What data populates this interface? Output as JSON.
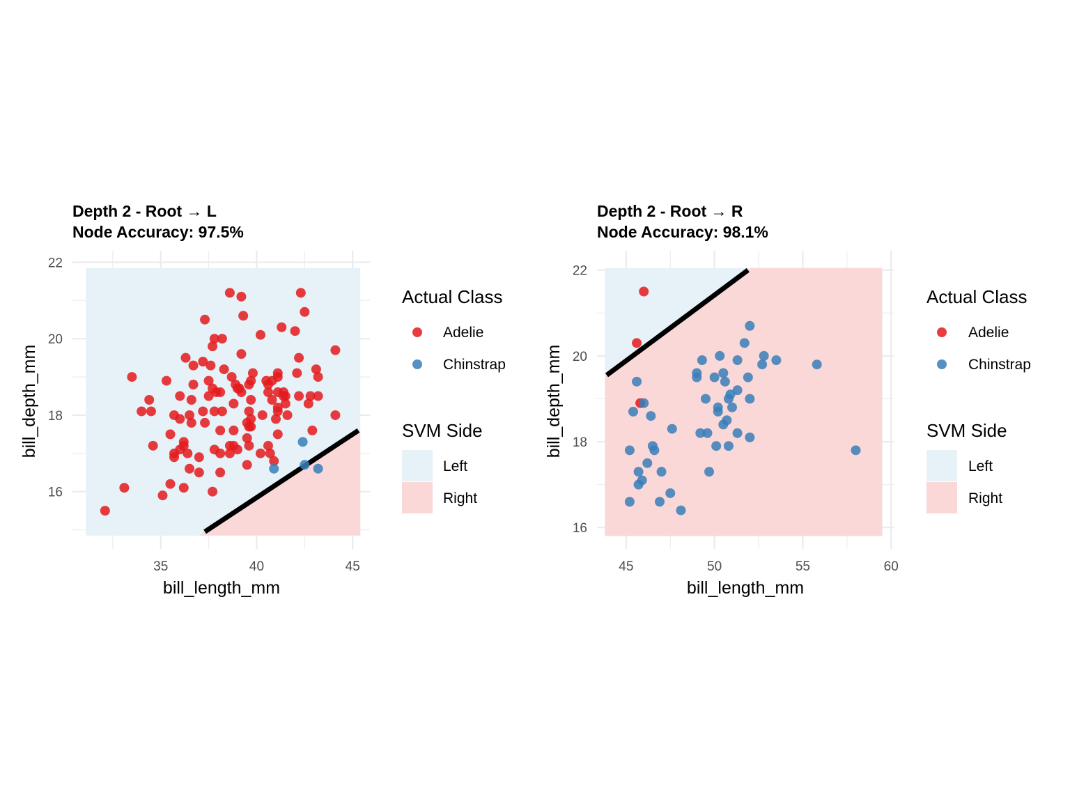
{
  "colors": {
    "adelie": "#E41A1C",
    "chinstrap": "#377EB8",
    "region_left": "#E6F1F8",
    "region_right": "#FAD8D8",
    "grid": "#EBEBEB",
    "boundary": "#000000"
  },
  "legend": {
    "class_title": "Actual Class",
    "class_items": [
      "Adelie",
      "Chinstrap"
    ],
    "side_title": "SVM Side",
    "side_items": [
      "Left",
      "Right"
    ]
  },
  "chart_data": [
    {
      "type": "scatter",
      "title": "Depth 2 - Root → L",
      "subtitle": "Node Accuracy: 97.5%",
      "xlabel": "bill_length_mm",
      "ylabel": "bill_depth_mm",
      "xlim": [
        30.4,
        45.9
      ],
      "ylim": [
        14.5,
        22.3
      ],
      "xticks": [
        35,
        40,
        45
      ],
      "yticks": [
        16,
        18,
        20,
        22
      ],
      "region_x": [
        31.1,
        45.4
      ],
      "region_y": [
        14.85,
        21.85
      ],
      "boundary": [
        [
          37.3,
          14.95
        ],
        [
          45.3,
          17.6
        ]
      ],
      "series": [
        {
          "name": "Adelie",
          "points": [
            [
              32.1,
              15.5
            ],
            [
              33.1,
              16.1
            ],
            [
              33.5,
              19.0
            ],
            [
              34.0,
              18.1
            ],
            [
              34.4,
              18.4
            ],
            [
              34.5,
              18.1
            ],
            [
              34.6,
              17.2
            ],
            [
              35.1,
              15.9
            ],
            [
              35.3,
              18.9
            ],
            [
              35.5,
              17.5
            ],
            [
              35.5,
              16.2
            ],
            [
              35.7,
              17.0
            ],
            [
              35.7,
              16.9
            ],
            [
              35.7,
              18.0
            ],
            [
              36.0,
              18.5
            ],
            [
              36.0,
              17.9
            ],
            [
              36.0,
              17.1
            ],
            [
              36.2,
              17.3
            ],
            [
              36.2,
              17.2
            ],
            [
              36.2,
              16.1
            ],
            [
              36.3,
              19.5
            ],
            [
              36.4,
              17.0
            ],
            [
              36.5,
              18.0
            ],
            [
              36.5,
              16.6
            ],
            [
              36.6,
              18.4
            ],
            [
              36.6,
              17.8
            ],
            [
              36.7,
              18.8
            ],
            [
              36.7,
              19.3
            ],
            [
              37.0,
              16.9
            ],
            [
              37.0,
              16.5
            ],
            [
              37.2,
              19.4
            ],
            [
              37.2,
              18.1
            ],
            [
              37.3,
              17.8
            ],
            [
              37.3,
              20.5
            ],
            [
              37.5,
              18.9
            ],
            [
              37.5,
              18.5
            ],
            [
              37.6,
              19.3
            ],
            [
              37.7,
              19.8
            ],
            [
              37.7,
              18.7
            ],
            [
              37.7,
              16.0
            ],
            [
              37.8,
              17.1
            ],
            [
              37.8,
              18.1
            ],
            [
              37.8,
              20.0
            ],
            [
              37.9,
              18.6
            ],
            [
              38.1,
              18.6
            ],
            [
              38.1,
              17.0
            ],
            [
              38.1,
              16.5
            ],
            [
              38.1,
              17.6
            ],
            [
              38.2,
              18.1
            ],
            [
              38.2,
              20.0
            ],
            [
              38.3,
              19.2
            ],
            [
              38.6,
              21.2
            ],
            [
              38.6,
              17.2
            ],
            [
              38.6,
              17.0
            ],
            [
              38.7,
              19.0
            ],
            [
              38.8,
              18.3
            ],
            [
              38.8,
              17.2
            ],
            [
              38.8,
              17.6
            ],
            [
              38.9,
              18.8
            ],
            [
              39.0,
              17.1
            ],
            [
              39.0,
              18.7
            ],
            [
              39.1,
              18.7
            ],
            [
              39.2,
              19.6
            ],
            [
              39.2,
              21.1
            ],
            [
              39.2,
              18.6
            ],
            [
              39.3,
              20.6
            ],
            [
              39.5,
              17.4
            ],
            [
              39.5,
              16.7
            ],
            [
              39.5,
              17.8
            ],
            [
              39.6,
              18.8
            ],
            [
              39.6,
              18.1
            ],
            [
              39.6,
              17.7
            ],
            [
              39.6,
              17.2
            ],
            [
              39.7,
              18.4
            ],
            [
              39.7,
              17.9
            ],
            [
              39.7,
              18.9
            ],
            [
              39.7,
              17.7
            ],
            [
              39.8,
              19.1
            ],
            [
              40.2,
              17.0
            ],
            [
              40.2,
              20.1
            ],
            [
              40.3,
              18.0
            ],
            [
              40.5,
              18.9
            ],
            [
              40.6,
              18.6
            ],
            [
              40.6,
              17.2
            ],
            [
              40.6,
              18.8
            ],
            [
              40.7,
              17.0
            ],
            [
              40.8,
              18.9
            ],
            [
              40.8,
              18.4
            ],
            [
              40.9,
              16.8
            ],
            [
              41.0,
              17.9
            ],
            [
              41.1,
              19.1
            ],
            [
              41.1,
              18.6
            ],
            [
              41.1,
              18.2
            ],
            [
              41.1,
              17.5
            ],
            [
              41.1,
              18.1
            ],
            [
              41.1,
              19.0
            ],
            [
              41.3,
              20.3
            ],
            [
              41.4,
              18.6
            ],
            [
              41.4,
              18.5
            ],
            [
              41.5,
              18.3
            ],
            [
              41.5,
              18.5
            ],
            [
              41.6,
              18.0
            ],
            [
              42.0,
              20.2
            ],
            [
              42.1,
              19.1
            ],
            [
              42.2,
              19.5
            ],
            [
              42.2,
              18.5
            ],
            [
              42.3,
              21.2
            ],
            [
              42.5,
              20.7
            ],
            [
              42.7,
              18.3
            ],
            [
              42.8,
              18.5
            ],
            [
              42.9,
              17.6
            ],
            [
              43.1,
              19.2
            ],
            [
              43.2,
              19.0
            ],
            [
              43.2,
              18.5
            ],
            [
              44.1,
              18.0
            ],
            [
              44.1,
              19.7
            ]
          ]
        },
        {
          "name": "Chinstrap",
          "points": [
            [
              40.9,
              16.6
            ],
            [
              42.4,
              17.3
            ],
            [
              42.5,
              16.7
            ],
            [
              43.2,
              16.6
            ]
          ]
        }
      ]
    },
    {
      "type": "scatter",
      "title": "Depth 2 - Root → R",
      "subtitle": "Node Accuracy: 98.1%",
      "xlabel": "bill_length_mm",
      "ylabel": "bill_depth_mm",
      "xlim": [
        43.35,
        60.15
      ],
      "ylim": [
        15.5,
        22.45
      ],
      "xticks": [
        45,
        50,
        55,
        60
      ],
      "yticks": [
        16,
        18,
        20,
        22
      ],
      "region_x": [
        43.8,
        59.5
      ],
      "region_y": [
        15.8,
        22.05
      ],
      "boundary": [
        [
          43.9,
          19.55
        ],
        [
          51.9,
          22.0
        ]
      ],
      "series": [
        {
          "name": "Adelie",
          "points": [
            [
              46.0,
              21.5
            ],
            [
              45.6,
              20.3
            ],
            [
              45.8,
              18.9
            ]
          ]
        },
        {
          "name": "Chinstrap",
          "points": [
            [
              45.2,
              17.8
            ],
            [
              45.2,
              16.6
            ],
            [
              45.4,
              18.7
            ],
            [
              45.6,
              19.4
            ],
            [
              45.7,
              17.3
            ],
            [
              45.7,
              17.0
            ],
            [
              45.9,
              17.1
            ],
            [
              46.0,
              18.9
            ],
            [
              46.2,
              17.5
            ],
            [
              46.4,
              18.6
            ],
            [
              46.5,
              17.9
            ],
            [
              46.6,
              17.8
            ],
            [
              46.9,
              16.6
            ],
            [
              47.0,
              17.3
            ],
            [
              47.5,
              16.8
            ],
            [
              47.6,
              18.3
            ],
            [
              48.1,
              16.4
            ],
            [
              49.0,
              19.5
            ],
            [
              49.0,
              19.6
            ],
            [
              49.2,
              18.2
            ],
            [
              49.3,
              19.9
            ],
            [
              49.5,
              19.0
            ],
            [
              49.6,
              18.2
            ],
            [
              49.7,
              17.3
            ],
            [
              50.0,
              19.5
            ],
            [
              50.1,
              17.9
            ],
            [
              50.2,
              18.8
            ],
            [
              50.2,
              18.7
            ],
            [
              50.3,
              20.0
            ],
            [
              50.5,
              18.4
            ],
            [
              50.5,
              19.6
            ],
            [
              50.6,
              19.4
            ],
            [
              50.7,
              18.5
            ],
            [
              50.8,
              19.0
            ],
            [
              50.8,
              17.9
            ],
            [
              50.9,
              19.1
            ],
            [
              51.0,
              18.8
            ],
            [
              51.3,
              19.9
            ],
            [
              51.3,
              18.2
            ],
            [
              51.3,
              19.2
            ],
            [
              51.7,
              20.3
            ],
            [
              51.9,
              19.5
            ],
            [
              52.0,
              18.1
            ],
            [
              52.0,
              19.0
            ],
            [
              52.0,
              20.7
            ],
            [
              52.7,
              19.8
            ],
            [
              52.8,
              20.0
            ],
            [
              53.5,
              19.9
            ],
            [
              55.8,
              19.8
            ],
            [
              58.0,
              17.8
            ]
          ]
        }
      ]
    }
  ]
}
